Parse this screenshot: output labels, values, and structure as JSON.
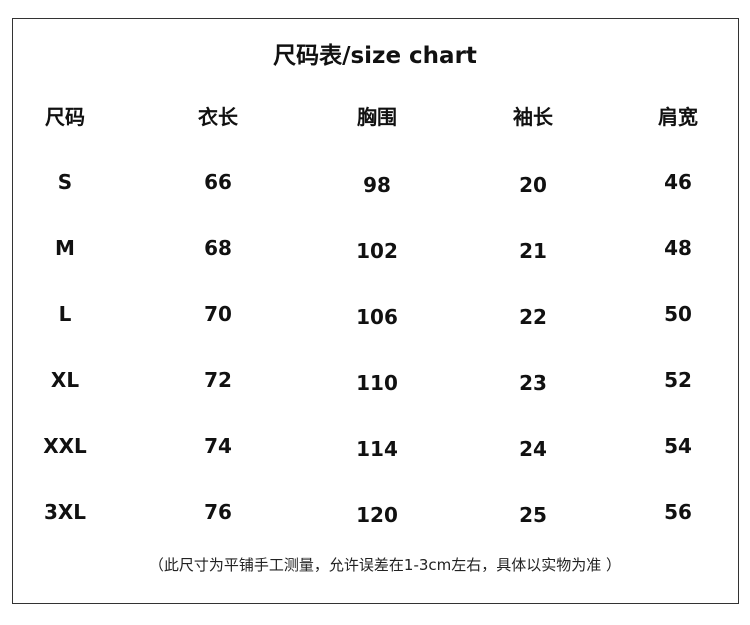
{
  "title": "尺码表/size chart",
  "headers": [
    "尺码",
    "衣长",
    "胸围",
    "袖长",
    "肩宽"
  ],
  "rows": [
    [
      "S",
      "66",
      "98",
      "20",
      "46"
    ],
    [
      "M",
      "68",
      "102",
      "21",
      "48"
    ],
    [
      "L",
      "70",
      "106",
      "22",
      "50"
    ],
    [
      "XL",
      "72",
      "110",
      "23",
      "52"
    ],
    [
      "XXL",
      "74",
      "114",
      "24",
      "54"
    ],
    [
      "3XL",
      "76",
      "120",
      "25",
      "56"
    ]
  ],
  "note": "（此尺寸为平铺手工测量，允许误差在1-3cm左右，具体以实物为准 ）"
}
